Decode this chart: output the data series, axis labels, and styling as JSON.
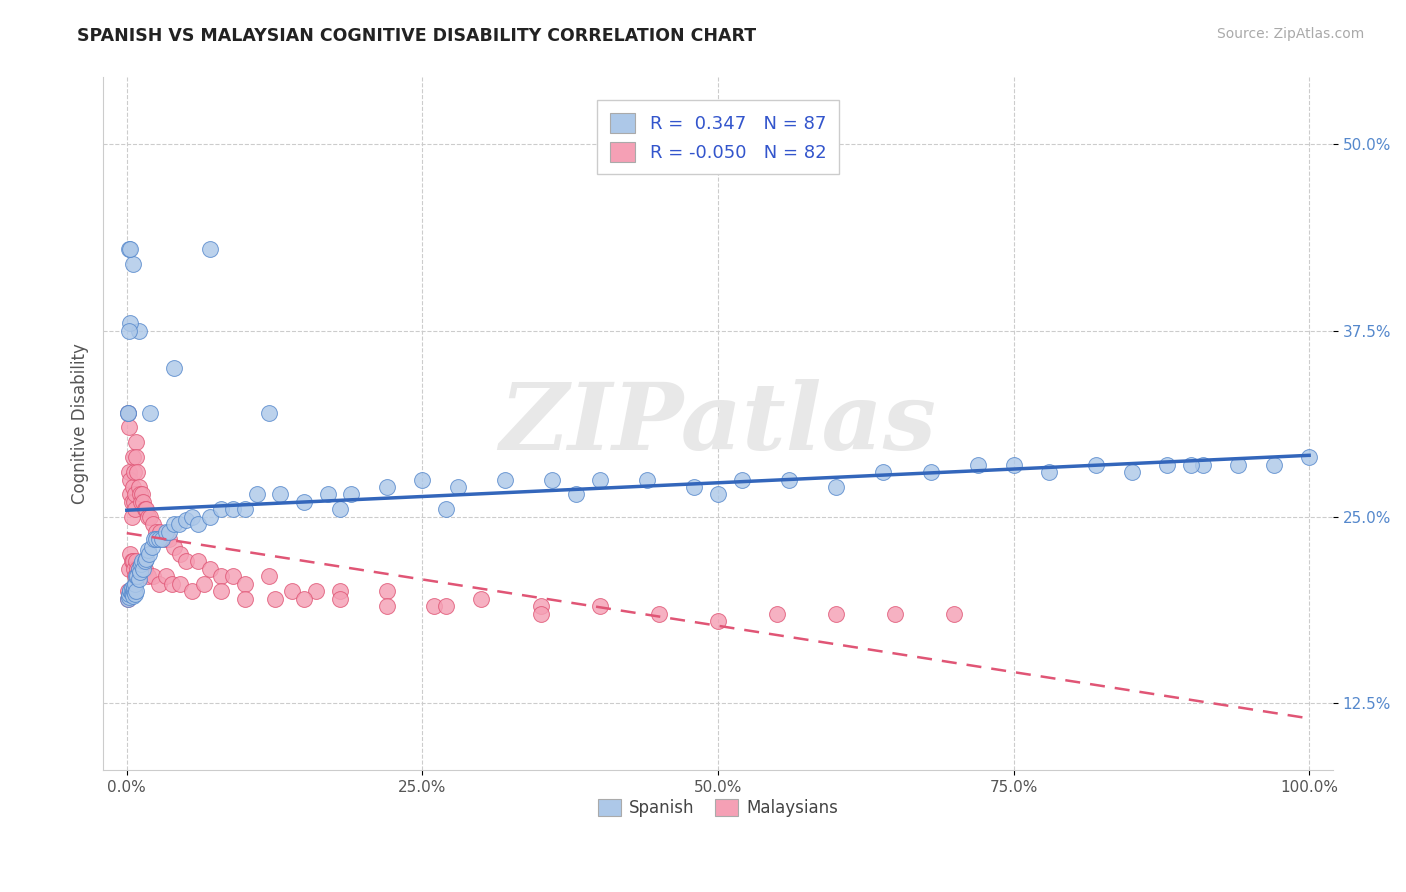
{
  "title": "SPANISH VS MALAYSIAN COGNITIVE DISABILITY CORRELATION CHART",
  "source": "Source: ZipAtlas.com",
  "ylabel": "Cognitive Disability",
  "xlim": [
    -0.02,
    1.02
  ],
  "ylim": [
    0.08,
    0.545
  ],
  "xticks": [
    0.0,
    0.25,
    0.5,
    0.75,
    1.0
  ],
  "xtick_labels": [
    "0.0%",
    "25.0%",
    "50.0%",
    "75.0%",
    "100.0%"
  ],
  "yticks": [
    0.125,
    0.25,
    0.375,
    0.5
  ],
  "ytick_labels": [
    "12.5%",
    "25.0%",
    "37.5%",
    "50.0%"
  ],
  "spanish_color": "#adc8e8",
  "malaysian_color": "#f5a0b5",
  "spanish_edge": "#5588cc",
  "malaysian_edge": "#e05575",
  "trend_spanish_color": "#3366bb",
  "trend_malaysian_color": "#e05575",
  "R_spanish": 0.347,
  "N_spanish": 87,
  "R_malaysian": -0.05,
  "N_malaysian": 82,
  "legend_label_spanish": "Spanish",
  "legend_label_malaysian": "Malaysians",
  "watermark": "ZIPatlas",
  "sp_x": [
    0.001,
    0.002,
    0.002,
    0.003,
    0.003,
    0.004,
    0.004,
    0.005,
    0.005,
    0.006,
    0.006,
    0.007,
    0.007,
    0.008,
    0.008,
    0.009,
    0.01,
    0.01,
    0.011,
    0.012,
    0.013,
    0.014,
    0.015,
    0.016,
    0.018,
    0.019,
    0.021,
    0.023,
    0.025,
    0.027,
    0.03,
    0.033,
    0.036,
    0.04,
    0.044,
    0.05,
    0.055,
    0.06,
    0.07,
    0.08,
    0.09,
    0.1,
    0.11,
    0.13,
    0.15,
    0.17,
    0.19,
    0.22,
    0.25,
    0.28,
    0.32,
    0.36,
    0.4,
    0.44,
    0.48,
    0.52,
    0.56,
    0.6,
    0.64,
    0.68,
    0.72,
    0.75,
    0.78,
    0.82,
    0.85,
    0.88,
    0.91,
    0.94,
    0.97,
    1.0,
    0.5,
    0.38,
    0.27,
    0.18,
    0.12,
    0.07,
    0.04,
    0.02,
    0.01,
    0.005,
    0.003,
    0.002,
    0.001,
    0.001,
    0.002,
    0.003,
    0.9
  ],
  "sp_y": [
    0.195,
    0.196,
    0.198,
    0.2,
    0.201,
    0.199,
    0.202,
    0.2,
    0.197,
    0.2,
    0.203,
    0.198,
    0.205,
    0.2,
    0.21,
    0.21,
    0.208,
    0.215,
    0.213,
    0.218,
    0.22,
    0.215,
    0.22,
    0.222,
    0.228,
    0.225,
    0.23,
    0.235,
    0.235,
    0.235,
    0.235,
    0.24,
    0.24,
    0.245,
    0.245,
    0.248,
    0.25,
    0.245,
    0.25,
    0.255,
    0.255,
    0.255,
    0.265,
    0.265,
    0.26,
    0.265,
    0.265,
    0.27,
    0.275,
    0.27,
    0.275,
    0.275,
    0.275,
    0.275,
    0.27,
    0.275,
    0.275,
    0.27,
    0.28,
    0.28,
    0.285,
    0.285,
    0.28,
    0.285,
    0.28,
    0.285,
    0.285,
    0.285,
    0.285,
    0.29,
    0.265,
    0.265,
    0.255,
    0.255,
    0.32,
    0.43,
    0.35,
    0.32,
    0.375,
    0.42,
    0.38,
    0.43,
    0.32,
    0.32,
    0.375,
    0.43,
    0.285
  ],
  "my_x": [
    0.001,
    0.001,
    0.002,
    0.002,
    0.003,
    0.003,
    0.004,
    0.004,
    0.005,
    0.005,
    0.006,
    0.006,
    0.007,
    0.007,
    0.008,
    0.008,
    0.009,
    0.01,
    0.011,
    0.012,
    0.013,
    0.014,
    0.015,
    0.016,
    0.018,
    0.02,
    0.022,
    0.025,
    0.028,
    0.032,
    0.036,
    0.04,
    0.045,
    0.05,
    0.06,
    0.07,
    0.08,
    0.09,
    0.1,
    0.12,
    0.14,
    0.16,
    0.18,
    0.22,
    0.26,
    0.3,
    0.35,
    0.4,
    0.45,
    0.5,
    0.55,
    0.6,
    0.65,
    0.7,
    0.001,
    0.002,
    0.003,
    0.004,
    0.005,
    0.006,
    0.007,
    0.008,
    0.009,
    0.01,
    0.012,
    0.015,
    0.018,
    0.022,
    0.027,
    0.033,
    0.038,
    0.045,
    0.055,
    0.065,
    0.08,
    0.1,
    0.125,
    0.15,
    0.18,
    0.22,
    0.27,
    0.35
  ],
  "my_y": [
    0.195,
    0.32,
    0.28,
    0.31,
    0.265,
    0.275,
    0.25,
    0.26,
    0.29,
    0.27,
    0.26,
    0.28,
    0.265,
    0.255,
    0.3,
    0.29,
    0.28,
    0.27,
    0.265,
    0.26,
    0.265,
    0.26,
    0.255,
    0.255,
    0.25,
    0.25,
    0.245,
    0.24,
    0.24,
    0.235,
    0.235,
    0.23,
    0.225,
    0.22,
    0.22,
    0.215,
    0.21,
    0.21,
    0.205,
    0.21,
    0.2,
    0.2,
    0.2,
    0.2,
    0.19,
    0.195,
    0.19,
    0.19,
    0.185,
    0.18,
    0.185,
    0.185,
    0.185,
    0.185,
    0.2,
    0.215,
    0.225,
    0.22,
    0.22,
    0.215,
    0.21,
    0.22,
    0.215,
    0.215,
    0.215,
    0.215,
    0.21,
    0.21,
    0.205,
    0.21,
    0.205,
    0.205,
    0.2,
    0.205,
    0.2,
    0.195,
    0.195,
    0.195,
    0.195,
    0.19,
    0.19,
    0.185
  ]
}
